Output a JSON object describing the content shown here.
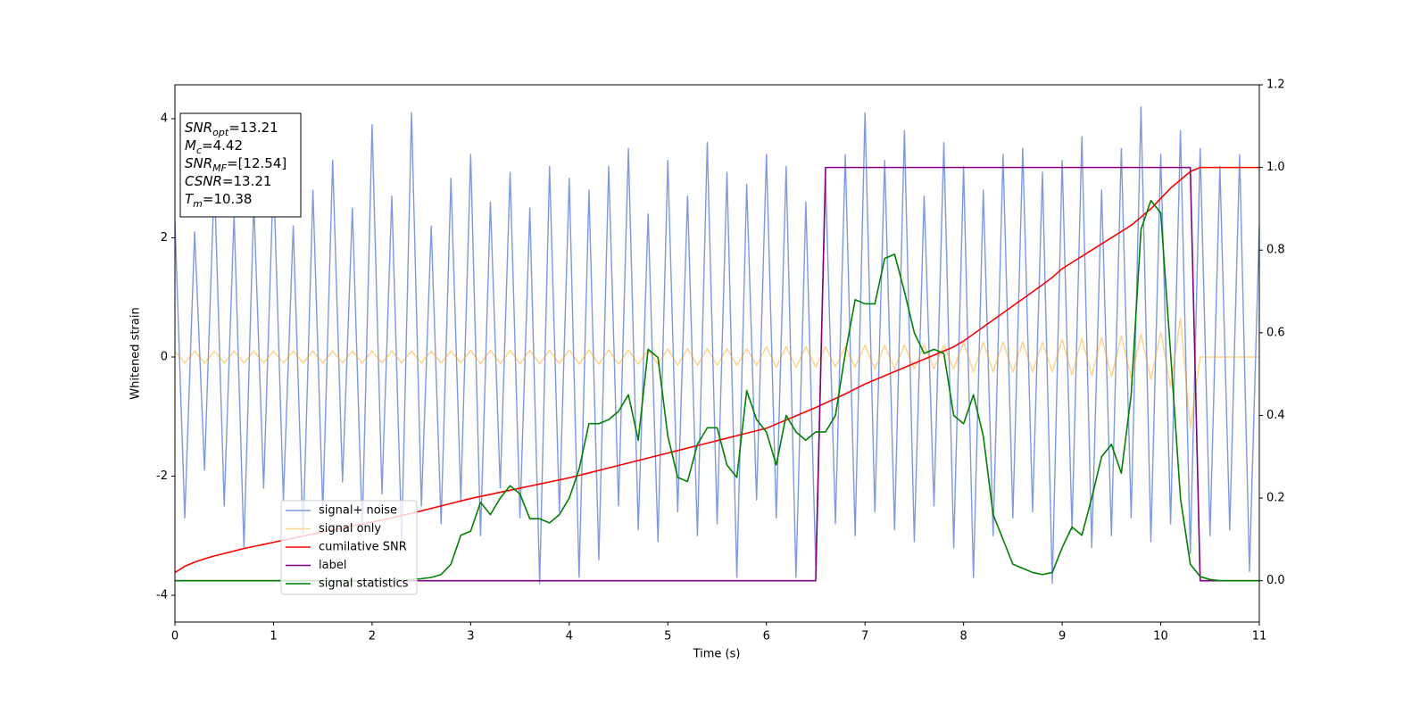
{
  "chart_data": {
    "type": "line",
    "xlabel": "Time (s)",
    "ylabel": "Whitened strain",
    "xlim": [
      0,
      11
    ],
    "xticks": [
      0,
      1,
      2,
      3,
      4,
      5,
      6,
      7,
      8,
      9,
      10,
      11
    ],
    "ylim": [
      -4.45,
      4.57
    ],
    "yticks": [
      -4,
      -2,
      0,
      2,
      4
    ],
    "y2lim": [
      -0.1,
      1.2
    ],
    "y2ticks": [
      {
        "value": 0,
        "label": "0.0"
      },
      0.2,
      0.4,
      0.6,
      0.8,
      {
        "value": 1,
        "label": "1.0"
      },
      1.2
    ],
    "legend": "lower left",
    "annotation": [
      {
        "symbol": "SNR",
        "sub": "opt",
        "text": "=13.21"
      },
      {
        "symbol": "M",
        "sub": "c",
        "text": "=4.42"
      },
      {
        "symbol": "SNR",
        "sub": "MF",
        "text": "=[12.54]"
      },
      {
        "symbol": "CSNR",
        "text": "=13.21"
      },
      {
        "symbol": "T",
        "sub": "m",
        "text": "=10.38"
      }
    ],
    "x": [
      0,
      0.1,
      0.2,
      0.3,
      0.4,
      0.5,
      0.6,
      0.7,
      0.8,
      0.9,
      1,
      1.1,
      1.2,
      1.3,
      1.4,
      1.5,
      1.6,
      1.7,
      1.8,
      1.9,
      2,
      2.1,
      2.2,
      2.3,
      2.4,
      2.5,
      2.6,
      2.7,
      2.8,
      2.9,
      3,
      3.1,
      3.2,
      3.3,
      3.4,
      3.5,
      3.6,
      3.7,
      3.8,
      3.9,
      4,
      4.1,
      4.2,
      4.3,
      4.4,
      4.5,
      4.6,
      4.7,
      4.8,
      4.9,
      5,
      5.1,
      5.2,
      5.3,
      5.4,
      5.5,
      5.6,
      5.7,
      5.8,
      5.9,
      6,
      6.1,
      6.2,
      6.3,
      6.4,
      6.5,
      6.6,
      6.7,
      6.8,
      6.9,
      7,
      7.1,
      7.2,
      7.3,
      7.4,
      7.5,
      7.6,
      7.7,
      7.8,
      7.9,
      8,
      8.1,
      8.2,
      8.3,
      8.4,
      8.5,
      8.6,
      8.7,
      8.8,
      8.9,
      9,
      9.1,
      9.2,
      9.3,
      9.4,
      9.5,
      9.6,
      9.7,
      9.8,
      9.9,
      10,
      10.1,
      10.2,
      10.3,
      10.4,
      10.5,
      10.6,
      10.7,
      10.8,
      10.9,
      11
    ],
    "series": [
      {
        "name": "signal+ noise",
        "color": "#6f8de6",
        "axis": "y",
        "values": [
          2.3,
          -2.7,
          2.1,
          -1.9,
          3.0,
          -2.5,
          2.4,
          -3.2,
          2.6,
          -2.2,
          3.1,
          -2.4,
          2.2,
          -3.0,
          2.8,
          -2.6,
          3.3,
          -2.1,
          2.5,
          -2.9,
          3.9,
          -2.3,
          2.7,
          -3.1,
          4.1,
          -2.5,
          2.2,
          -2.8,
          3.0,
          -2.4,
          3.4,
          -3.0,
          2.6,
          -2.2,
          3.1,
          -2.7,
          2.5,
          -3.8,
          3.2,
          -2.6,
          3.0,
          -3.7,
          2.8,
          -3.4,
          3.2,
          -2.5,
          3.5,
          -2.9,
          2.4,
          -3.1,
          3.3,
          -2.6,
          2.7,
          -3.0,
          3.6,
          -2.8,
          3.1,
          -3.7,
          2.9,
          -2.4,
          3.4,
          -2.7,
          3.2,
          -3.7,
          2.6,
          -3.5,
          3.0,
          -2.8,
          3.4,
          -3.0,
          4.1,
          -2.6,
          3.3,
          -2.9,
          3.8,
          -3.1,
          2.7,
          -2.5,
          3.6,
          -3.2,
          3.2,
          -3.7,
          2.8,
          -3.0,
          3.4,
          -2.7,
          3.5,
          -2.6,
          3.1,
          -3.8,
          3.3,
          -2.9,
          3.7,
          -3.2,
          2.8,
          -3.0,
          3.5,
          -2.7,
          4.2,
          -3.1,
          3.4,
          -2.8,
          3.8,
          -3.3,
          3.5,
          -3.0,
          3.2,
          -2.9,
          3.4,
          -3.6,
          2.2
        ]
      },
      {
        "name": "signal only",
        "color": "#ffa500",
        "axis": "y",
        "values": [
          0.1,
          -0.1,
          0.1,
          -0.1,
          0.1,
          -0.1,
          0.1,
          -0.1,
          0.1,
          -0.1,
          0.1,
          -0.1,
          0.1,
          -0.1,
          0.1,
          -0.1,
          0.1,
          -0.1,
          0.1,
          -0.1,
          0.1,
          -0.1,
          0.1,
          -0.1,
          0.1,
          -0.1,
          0.1,
          -0.1,
          0.1,
          -0.1,
          0.11,
          -0.11,
          0.11,
          -0.11,
          0.11,
          -0.11,
          0.11,
          -0.11,
          0.11,
          -0.11,
          0.12,
          -0.12,
          0.12,
          -0.12,
          0.12,
          -0.12,
          0.12,
          -0.12,
          0.12,
          -0.12,
          0.14,
          -0.14,
          0.14,
          -0.14,
          0.14,
          -0.14,
          0.14,
          -0.14,
          0.14,
          -0.14,
          0.17,
          -0.17,
          0.17,
          -0.17,
          0.17,
          -0.17,
          0.17,
          -0.17,
          0.17,
          -0.17,
          0.2,
          -0.2,
          0.2,
          -0.2,
          0.2,
          -0.2,
          0.2,
          -0.2,
          0.2,
          -0.2,
          0.25,
          -0.25,
          0.25,
          -0.25,
          0.25,
          -0.25,
          0.25,
          -0.25,
          0.25,
          -0.25,
          0.3,
          -0.3,
          0.31,
          -0.31,
          0.33,
          -0.33,
          0.35,
          -0.35,
          0.38,
          -0.38,
          0.42,
          -0.5,
          0.65,
          -1.2,
          0,
          0,
          0,
          0,
          0,
          0,
          0
        ]
      },
      {
        "name": "cumilative SNR",
        "color": "#ff0000",
        "axis": "y2",
        "values": [
          0.02,
          0.035,
          0.045,
          0.053,
          0.06,
          0.066,
          0.072,
          0.078,
          0.083,
          0.088,
          0.093,
          0.098,
          0.103,
          0.108,
          0.113,
          0.118,
          0.123,
          0.128,
          0.133,
          0.137,
          0.142,
          0.147,
          0.152,
          0.158,
          0.163,
          0.169,
          0.175,
          0.181,
          0.187,
          0.193,
          0.199,
          0.204,
          0.209,
          0.214,
          0.219,
          0.224,
          0.229,
          0.234,
          0.239,
          0.244,
          0.249,
          0.255,
          0.261,
          0.267,
          0.273,
          0.279,
          0.285,
          0.291,
          0.297,
          0.303,
          0.309,
          0.315,
          0.321,
          0.327,
          0.333,
          0.339,
          0.345,
          0.351,
          0.357,
          0.363,
          0.369,
          0.379,
          0.389,
          0.399,
          0.409,
          0.419,
          0.43,
          0.441,
          0.452,
          0.464,
          0.476,
          0.486,
          0.496,
          0.506,
          0.516,
          0.526,
          0.536,
          0.546,
          0.556,
          0.566,
          0.58,
          0.597,
          0.614,
          0.631,
          0.648,
          0.665,
          0.682,
          0.699,
          0.716,
          0.734,
          0.755,
          0.77,
          0.785,
          0.8,
          0.815,
          0.83,
          0.845,
          0.86,
          0.88,
          0.9,
          0.925,
          0.95,
          0.97,
          0.99,
          1.0,
          1.0,
          1.0,
          1.0,
          1.0,
          1.0,
          1.0
        ]
      },
      {
        "name": "label",
        "color": "#800080",
        "axis": "y2",
        "values": [
          0,
          0,
          0,
          0,
          0,
          0,
          0,
          0,
          0,
          0,
          0,
          0,
          0,
          0,
          0,
          0,
          0,
          0,
          0,
          0,
          0,
          0,
          0,
          0,
          0,
          0,
          0,
          0,
          0,
          0,
          0,
          0,
          0,
          0,
          0,
          0,
          0,
          0,
          0,
          0,
          0,
          0,
          0,
          0,
          0,
          0,
          0,
          0,
          0,
          0,
          0,
          0,
          0,
          0,
          0,
          0,
          0,
          0,
          0,
          0,
          0,
          0,
          0,
          0,
          0,
          0,
          1,
          1,
          1,
          1,
          1,
          1,
          1,
          1,
          1,
          1,
          1,
          1,
          1,
          1,
          1,
          1,
          1,
          1,
          1,
          1,
          1,
          1,
          1,
          1,
          1,
          1,
          1,
          1,
          1,
          1,
          1,
          1,
          1,
          1,
          1,
          1,
          1,
          1,
          0,
          0,
          0,
          0,
          0,
          0,
          0
        ]
      },
      {
        "name": "signal statistics",
        "color": "#008000",
        "axis": "y2",
        "values": [
          0,
          0,
          0,
          0,
          0,
          0,
          0,
          0,
          0,
          0,
          0,
          0,
          0,
          0,
          0,
          0,
          0,
          0,
          0,
          0,
          0.001,
          0.001,
          0.002,
          0.002,
          0.003,
          0.005,
          0.008,
          0.015,
          0.04,
          0.11,
          0.12,
          0.19,
          0.16,
          0.2,
          0.23,
          0.21,
          0.15,
          0.15,
          0.14,
          0.16,
          0.2,
          0.27,
          0.38,
          0.38,
          0.39,
          0.41,
          0.45,
          0.34,
          0.56,
          0.54,
          0.35,
          0.25,
          0.24,
          0.33,
          0.37,
          0.37,
          0.28,
          0.25,
          0.46,
          0.39,
          0.36,
          0.28,
          0.4,
          0.36,
          0.34,
          0.36,
          0.36,
          0.4,
          0.55,
          0.68,
          0.67,
          0.67,
          0.78,
          0.79,
          0.7,
          0.6,
          0.55,
          0.56,
          0.55,
          0.4,
          0.38,
          0.45,
          0.35,
          0.16,
          0.1,
          0.04,
          0.03,
          0.02,
          0.015,
          0.02,
          0.08,
          0.13,
          0.11,
          0.2,
          0.3,
          0.33,
          0.26,
          0.45,
          0.85,
          0.92,
          0.89,
          0.55,
          0.2,
          0.04,
          0.01,
          0.003,
          0,
          0,
          0,
          0,
          0
        ]
      }
    ]
  }
}
